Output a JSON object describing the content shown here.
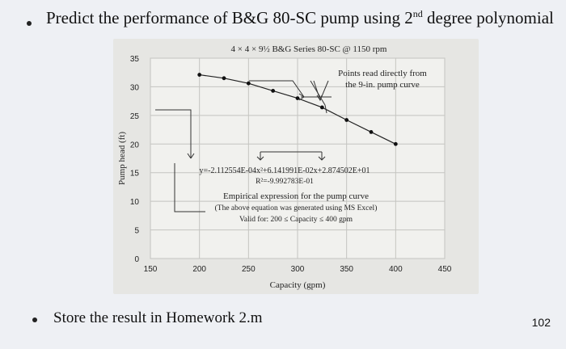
{
  "heading": {
    "prefix": "Predict the performance of B&G 80-SC pump using 2",
    "superscript": "nd",
    "suffix": " degree polynomial"
  },
  "footer": {
    "text": "Store the result in Homework 2.m"
  },
  "page_number": "102",
  "chart_data": {
    "type": "scatter",
    "title": "4 × 4 × 9½  B&G Series 80-SC @ 1150 rpm",
    "xlabel": "Capacity (gpm)",
    "ylabel": "Pump head (ft)",
    "xlim": [
      150,
      450
    ],
    "ylim": [
      0,
      35
    ],
    "x_ticks": [
      "150",
      "200",
      "250",
      "300",
      "350",
      "400",
      "450"
    ],
    "y_ticks": [
      "0",
      "5",
      "10",
      "15",
      "20",
      "25",
      "30",
      "35"
    ],
    "grid": true,
    "series": [
      {
        "x": [
          200,
          225,
          250,
          275,
          300,
          325,
          350,
          375,
          400
        ],
        "y": [
          32.1,
          31.5,
          30.6,
          29.3,
          28.0,
          26.4,
          24.2,
          22.1,
          20.0
        ]
      }
    ],
    "annotations": {
      "points_note_line1": "Points read directly from",
      "points_note_line2": "the 9-in. pump curve",
      "equation": "y=-2.112554E-04x²+6.141991E-02x+2.874502E+01",
      "r_squared": "R²=-9.992783E-01",
      "empirical_title": "Empirical expression for the pump curve",
      "excel_note": "(The above equation was generated using MS Excel)",
      "valid_for": "Valid for: 200 ≤ Capacity ≤ 400 gpm"
    }
  }
}
